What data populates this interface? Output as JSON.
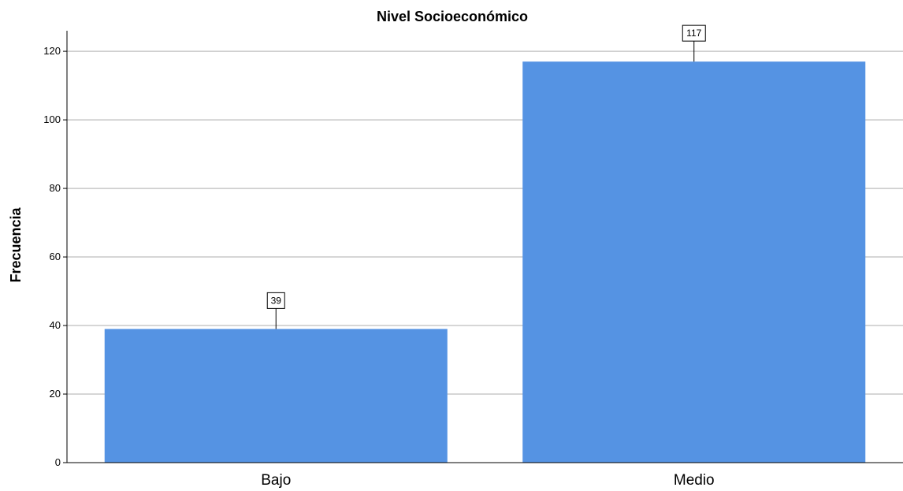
{
  "chart_data": {
    "type": "bar",
    "title": "Nivel Socioeconómico",
    "xlabel": "",
    "ylabel": "Frecuencia",
    "categories": [
      "Bajo",
      "Medio"
    ],
    "values": [
      39,
      117
    ],
    "data_labels": [
      "39",
      "117"
    ],
    "ylim": [
      0,
      126
    ],
    "yticks": [
      0,
      20,
      40,
      60,
      80,
      100,
      120
    ],
    "ytick_labels": [
      "0",
      "20",
      "40",
      "60",
      "80",
      "100",
      "120"
    ],
    "grid": "horizontal",
    "bar_color": "#5593e3",
    "grid_color": "#c8c8c8"
  }
}
